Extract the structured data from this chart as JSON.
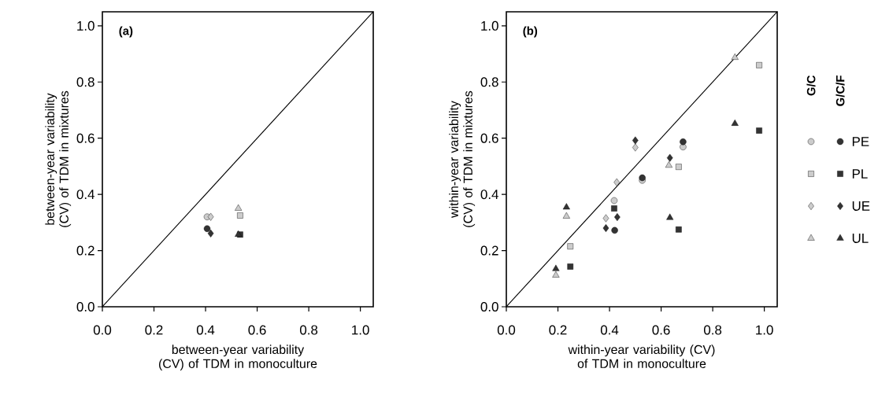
{
  "chart_data": [
    {
      "type": "scatter",
      "title": "(a)",
      "xlabel": "between-year variability (CV) of TDM in monoculture",
      "ylabel": "between-year variability (CV) of TDM in mixtures",
      "xlim": [
        0,
        1.05
      ],
      "ylim": [
        0,
        1.05
      ],
      "xticks": [
        {
          "value": 0,
          "label": "0.0"
        },
        {
          "value": 0.2,
          "label": "0.2"
        },
        {
          "value": 0.4,
          "label": "0.4"
        },
        {
          "value": 0.6,
          "label": "0.6"
        },
        {
          "value": 0.8,
          "label": "0.8"
        },
        {
          "value": 1,
          "label": "1.0"
        }
      ],
      "yticks": [
        {
          "value": 0,
          "label": "0.0"
        },
        {
          "value": 0.2,
          "label": "0.2"
        },
        {
          "value": 0.4,
          "label": "0.4"
        },
        {
          "value": 0.6,
          "label": "0.6"
        },
        {
          "value": 0.8,
          "label": "0.8"
        },
        {
          "value": 1,
          "label": "1.0"
        }
      ],
      "series": [
        {
          "type": "line",
          "color": "#000000",
          "marker": "none",
          "x": [
            0,
            1.05
          ],
          "values": [
            0,
            1.05
          ]
        },
        {
          "color": "#cccccc",
          "marker": "circle",
          "x": [
            0.406
          ],
          "values": [
            0.32
          ]
        },
        {
          "color": "#cccccc",
          "marker": "square",
          "x": [
            0.534
          ],
          "values": [
            0.325
          ]
        },
        {
          "color": "#cccccc",
          "marker": "diamond",
          "x": [
            0.42
          ],
          "values": [
            0.32
          ]
        },
        {
          "color": "#cccccc",
          "marker": "triangle",
          "x": [
            0.527
          ],
          "values": [
            0.35
          ]
        },
        {
          "color": "#333333",
          "marker": "circle",
          "x": [
            0.406
          ],
          "values": [
            0.278
          ]
        },
        {
          "color": "#333333",
          "marker": "square",
          "x": [
            0.534
          ],
          "values": [
            0.257
          ]
        },
        {
          "color": "#333333",
          "marker": "diamond",
          "x": [
            0.42
          ],
          "values": [
            0.261
          ]
        },
        {
          "color": "#333333",
          "marker": "triangle",
          "x": [
            0.527
          ],
          "values": [
            0.257
          ]
        }
      ]
    },
    {
      "type": "scatter",
      "title": "(b)",
      "xlabel": "within-year variability (CV) of TDM in monoculture",
      "ylabel": "within-year variability (CV) of TDM in mixtures",
      "xlim": [
        0,
        1.05
      ],
      "ylim": [
        0,
        1.05
      ],
      "legend": "right",
      "annotations": [
        "G/C",
        "G/C/F"
      ],
      "xticks": [
        {
          "value": 0,
          "label": "0.0"
        },
        {
          "value": 0.2,
          "label": "0.2"
        },
        {
          "value": 0.4,
          "label": "0.4"
        },
        {
          "value": 0.6,
          "label": "0.6"
        },
        {
          "value": 0.8,
          "label": "0.8"
        },
        {
          "value": 1,
          "label": "1.0"
        }
      ],
      "yticks": [
        {
          "value": 0,
          "label": "0.0"
        },
        {
          "value": 0.2,
          "label": "0.2"
        },
        {
          "value": 0.4,
          "label": "0.4"
        },
        {
          "value": 0.6,
          "label": "0.6"
        },
        {
          "value": 0.8,
          "label": "0.8"
        },
        {
          "value": 1,
          "label": "1.0"
        }
      ],
      "series": [
        {
          "type": "line",
          "color": "#000000",
          "marker": "none",
          "x": [
            0,
            1.05
          ],
          "values": [
            0,
            1.05
          ]
        },
        {
          "color": "#cccccc",
          "marker": "circle",
          "x": [
            0.685,
            0.527,
            0.418
          ],
          "values": [
            0.569,
            0.45,
            0.378
          ]
        },
        {
          "color": "#cccccc",
          "marker": "square",
          "x": [
            0.98,
            0.668,
            0.248
          ],
          "values": [
            0.86,
            0.498,
            0.215
          ]
        },
        {
          "color": "#cccccc",
          "marker": "diamond",
          "x": [
            0.5,
            0.428,
            0.386
          ],
          "values": [
            0.567,
            0.443,
            0.315
          ]
        },
        {
          "color": "#cccccc",
          "marker": "triangle",
          "x": [
            0.886,
            0.63,
            0.233,
            0.192
          ],
          "values": [
            0.887,
            0.503,
            0.322,
            0.112
          ]
        },
        {
          "name": "PE",
          "color": "#333333",
          "marker": "circle",
          "x": [
            0.685,
            0.527,
            0.42
          ],
          "values": [
            0.587,
            0.459,
            0.272
          ]
        },
        {
          "name": "PL",
          "color": "#333333",
          "marker": "square",
          "x": [
            0.98,
            0.668,
            0.418,
            0.248
          ],
          "values": [
            0.627,
            0.275,
            0.35,
            0.143
          ]
        },
        {
          "name": "UE",
          "color": "#333333",
          "marker": "diamond",
          "x": [
            0.5,
            0.634,
            0.43,
            0.386
          ],
          "values": [
            0.592,
            0.53,
            0.319,
            0.28
          ]
        },
        {
          "name": "UL",
          "color": "#333333",
          "marker": "triangle",
          "x": [
            0.886,
            0.634,
            0.233,
            0.192
          ],
          "values": [
            0.652,
            0.317,
            0.354,
            0.135
          ]
        }
      ]
    }
  ]
}
